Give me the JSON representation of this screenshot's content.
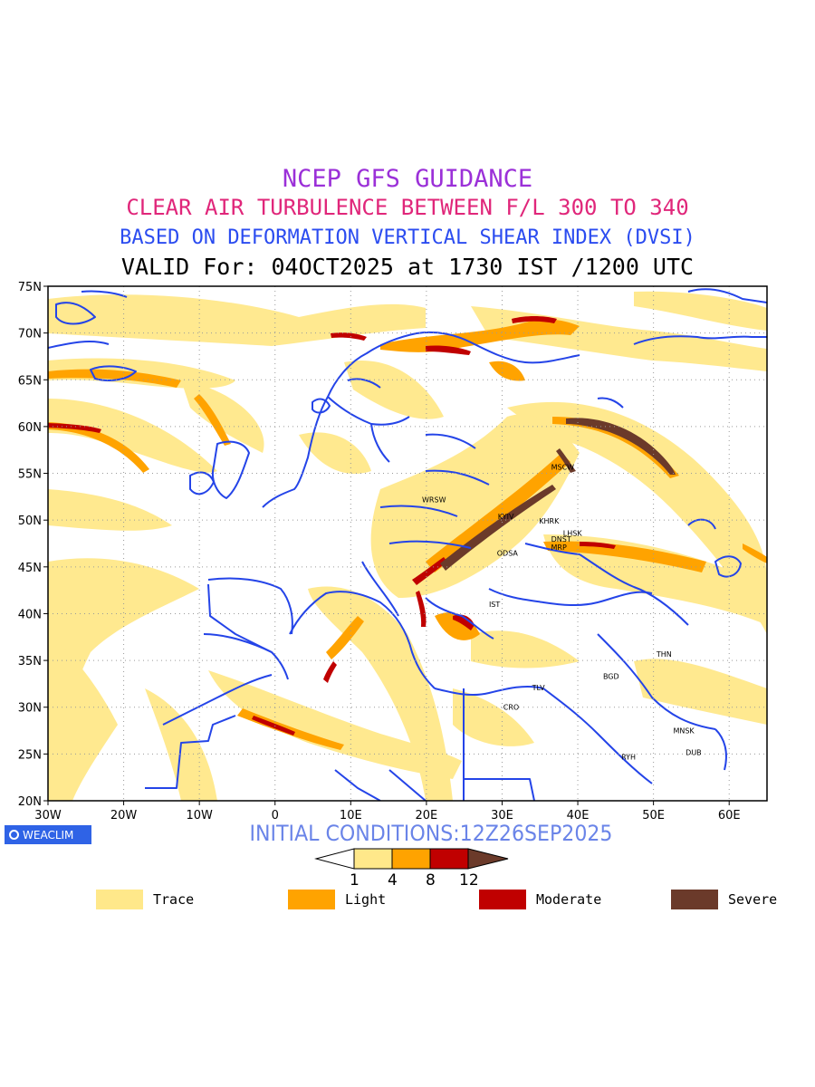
{
  "titles": {
    "line1": "NCEP GFS GUIDANCE",
    "line2": "CLEAR AIR TURBULENCE BETWEEN F/L 300 TO 340",
    "line3": "BASED ON DEFORMATION VERTICAL SHEAR INDEX (DVSI)",
    "line4": "VALID For: 04OCT2025 at 1730 IST /1200 UTC"
  },
  "map": {
    "lon_range": [
      -30,
      65
    ],
    "lat_range": [
      20,
      75
    ],
    "lon_ticks": [
      "30W",
      "20W",
      "10W",
      "0",
      "10E",
      "20E",
      "30E",
      "40E",
      "50E",
      "60E"
    ],
    "lat_ticks": [
      "75N",
      "70N",
      "65N",
      "60N",
      "55N",
      "50N",
      "45N",
      "40N",
      "35N",
      "30N",
      "25N",
      "20N"
    ],
    "gridlines": "dotted",
    "colors": {
      "trace": "#ffe88a",
      "light": "#ffa300",
      "moderate": "#c00000",
      "severe": "#6b3a2a",
      "borders": "#2444e8"
    },
    "cities": [
      {
        "code": "MSCW",
        "lon": 38.0,
        "lat": 55.7
      },
      {
        "code": "WRSW",
        "lon": 21.0,
        "lat": 52.2
      },
      {
        "code": "KYIV",
        "lon": 30.5,
        "lat": 50.4
      },
      {
        "code": "KHRK",
        "lon": 36.2,
        "lat": 49.9
      },
      {
        "code": "LHSK",
        "lon": 39.3,
        "lat": 48.6
      },
      {
        "code": "DNST",
        "lon": 37.8,
        "lat": 48.0
      },
      {
        "code": "MRP",
        "lon": 37.5,
        "lat": 47.1
      },
      {
        "code": "ODSA",
        "lon": 30.7,
        "lat": 46.5
      },
      {
        "code": "IST",
        "lon": 29.0,
        "lat": 41.0
      },
      {
        "code": "THN",
        "lon": 51.4,
        "lat": 35.7
      },
      {
        "code": "BGD",
        "lon": 44.4,
        "lat": 33.3
      },
      {
        "code": "TLV",
        "lon": 34.8,
        "lat": 32.1
      },
      {
        "code": "CRO",
        "lon": 31.2,
        "lat": 30.0
      },
      {
        "code": "MNSK",
        "lon": 54.0,
        "lat": 27.5
      },
      {
        "code": "RYH",
        "lon": 46.7,
        "lat": 24.7
      },
      {
        "code": "DUB",
        "lon": 55.3,
        "lat": 25.2
      }
    ]
  },
  "initial_conditions": "INITIAL CONDITIONS:12Z26SEP2025",
  "logo_text": "WEACLIM",
  "colorbar": {
    "ticks": [
      "1",
      "4",
      "8",
      "12"
    ],
    "colors": [
      "#ffe88a",
      "#ffa300",
      "#c00000",
      "#6b3a2a"
    ]
  },
  "legend": [
    {
      "label": "Trace",
      "color": "#ffe88a"
    },
    {
      "label": "Light",
      "color": "#ffa300"
    },
    {
      "label": "Moderate",
      "color": "#c00000"
    },
    {
      "label": "Severe",
      "color": "#6b3a2a"
    }
  ]
}
